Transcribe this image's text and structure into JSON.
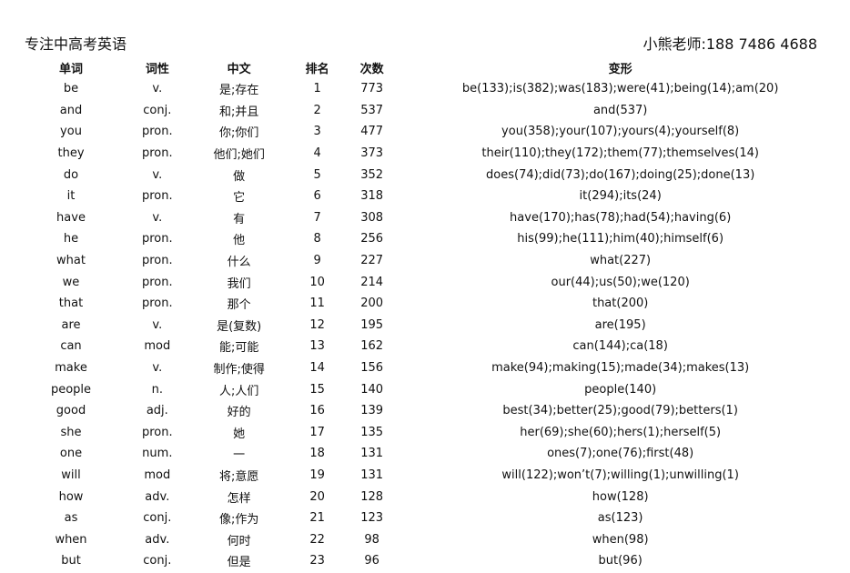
{
  "header": {
    "left": "专注中高考英语",
    "right": "小熊老师:188 7486 4688"
  },
  "columns": [
    "单词",
    "词性",
    "中文",
    "排名",
    "次数",
    "变形"
  ],
  "rows": [
    [
      "be",
      "v.",
      "是;存在",
      "1",
      "773",
      "be(133);is(382);was(183);were(41);being(14);am(20)"
    ],
    [
      "and",
      "conj.",
      "和;并且",
      "2",
      "537",
      "and(537)"
    ],
    [
      "you",
      "pron.",
      "你;你们",
      "3",
      "477",
      "you(358);your(107);yours(4);yourself(8)"
    ],
    [
      "they",
      "pron.",
      "他们;她们",
      "4",
      "373",
      "their(110);they(172);them(77);themselves(14)"
    ],
    [
      "do",
      "v.",
      "做",
      "5",
      "352",
      "does(74);did(73);do(167);doing(25);done(13)"
    ],
    [
      "it",
      "pron.",
      "它",
      "6",
      "318",
      "it(294);its(24)"
    ],
    [
      "have",
      "v.",
      "有",
      "7",
      "308",
      "have(170);has(78);had(54);having(6)"
    ],
    [
      "he",
      "pron.",
      "他",
      "8",
      "256",
      "his(99);he(111);him(40);himself(6)"
    ],
    [
      "what",
      "pron.",
      "什么",
      "9",
      "227",
      "what(227)"
    ],
    [
      "we",
      "pron.",
      "我们",
      "10",
      "214",
      "our(44);us(50);we(120)"
    ],
    [
      "that",
      "pron.",
      "那个",
      "11",
      "200",
      "that(200)"
    ],
    [
      "are",
      "v.",
      "是(复数)",
      "12",
      "195",
      "are(195)"
    ],
    [
      "can",
      "mod",
      "能;可能",
      "13",
      "162",
      "can(144);ca(18)"
    ],
    [
      "make",
      "v.",
      "制作;使得",
      "14",
      "156",
      "make(94);making(15);made(34);makes(13)"
    ],
    [
      "people",
      "n.",
      "人;人们",
      "15",
      "140",
      "people(140)"
    ],
    [
      "good",
      "adj.",
      "好的",
      "16",
      "139",
      "best(34);better(25);good(79);betters(1)"
    ],
    [
      "she",
      "pron.",
      "她",
      "17",
      "135",
      "her(69);she(60);hers(1);herself(5)"
    ],
    [
      "one",
      "num.",
      "一",
      "18",
      "131",
      "ones(7);one(76);first(48)"
    ],
    [
      "will",
      "mod",
      "将;意愿",
      "19",
      "131",
      "will(122);won’t(7);willing(1);unwilling(1)"
    ],
    [
      "how",
      "adv.",
      "怎样",
      "20",
      "128",
      "how(128)"
    ],
    [
      "as",
      "conj.",
      "像;作为",
      "21",
      "123",
      "as(123)"
    ],
    [
      "when",
      "adv.",
      "何时",
      "22",
      "98",
      "when(98)"
    ],
    [
      "but",
      "conj.",
      "但是",
      "23",
      "96",
      "but(96)"
    ]
  ]
}
